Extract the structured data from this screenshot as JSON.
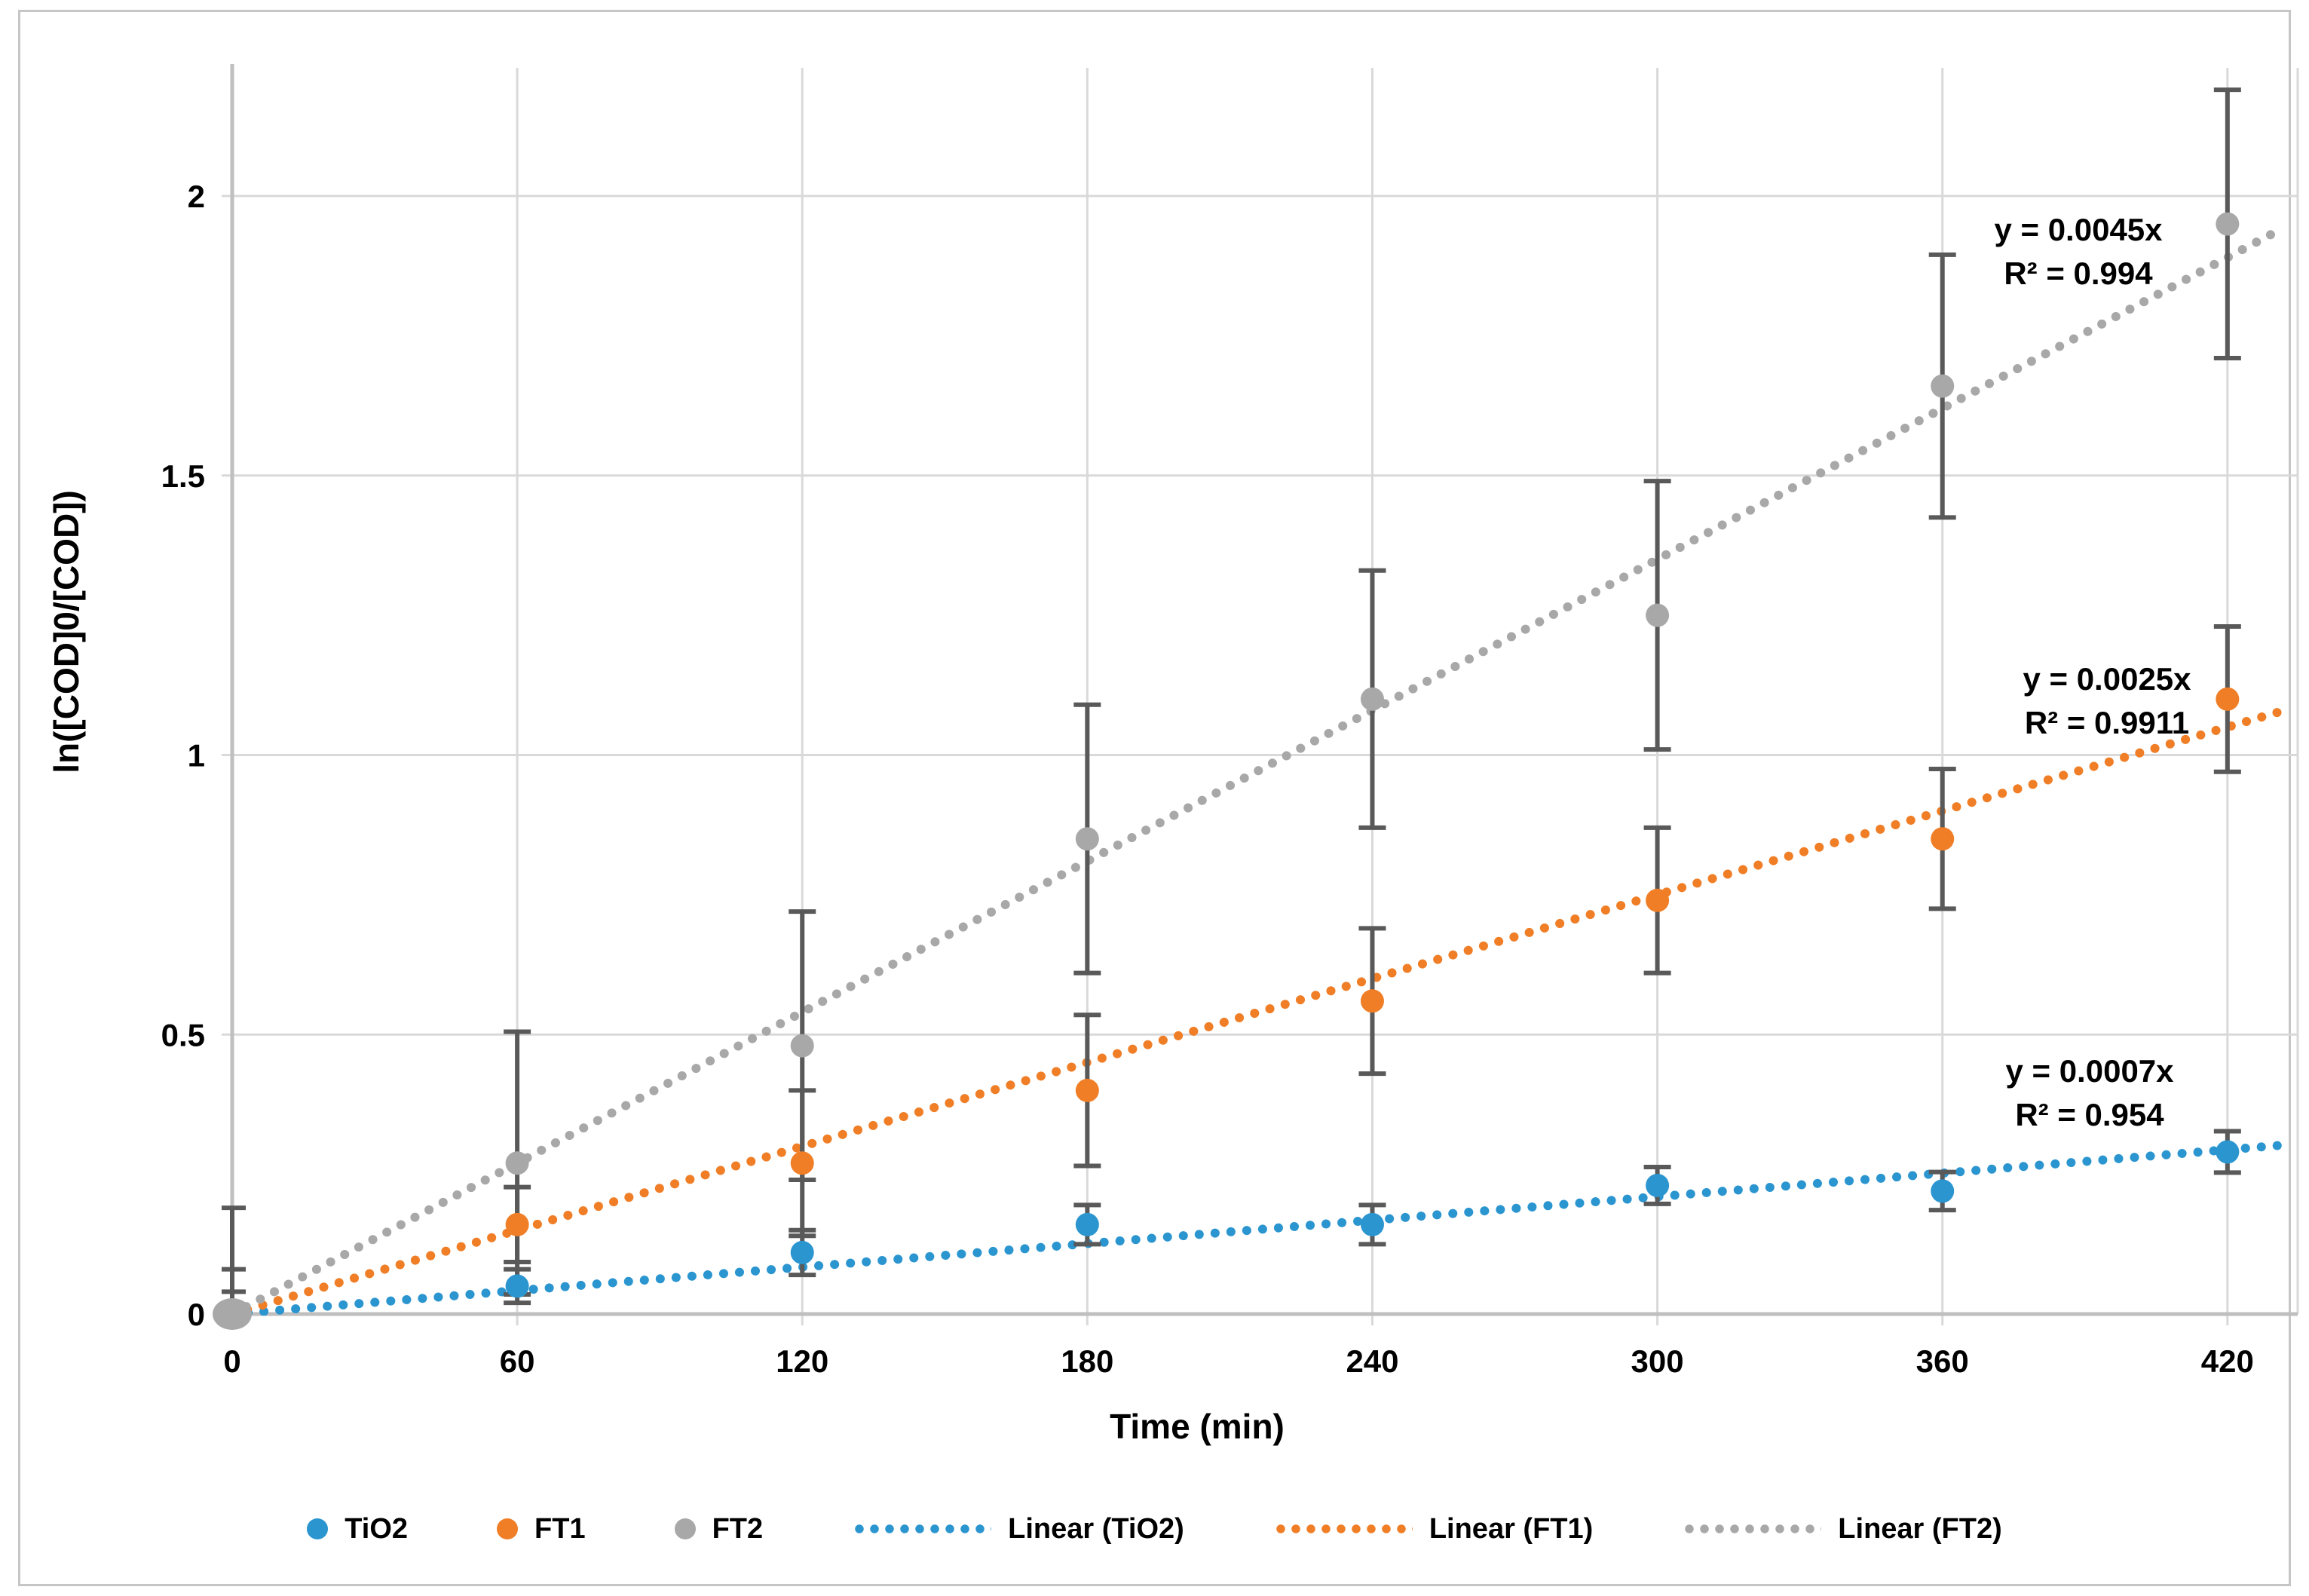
{
  "chart_data": {
    "type": "scatter",
    "title": "",
    "xlabel": "Time (min)",
    "ylabel": "ln([COD]0/[COD])",
    "x_tick_labels": [
      "0",
      "60",
      "120",
      "180",
      "240",
      "300",
      "360",
      "420"
    ],
    "y_tick_labels": [
      "0",
      "0.5",
      "1",
      "1.5",
      "2"
    ],
    "x_ticks": [
      0,
      60,
      120,
      180,
      240,
      300,
      360,
      420
    ],
    "y_ticks": [
      0,
      0.5,
      1,
      1.5,
      2
    ],
    "xlim": [
      0,
      434
    ],
    "ylim": [
      0,
      2.23
    ],
    "grid": true,
    "legend_position": "bottom",
    "x": [
      0,
      60,
      120,
      180,
      240,
      300,
      360,
      420
    ],
    "series": [
      {
        "name": "TiO2",
        "color": "#2B95D0",
        "values": [
          0,
          0.05,
          0.11,
          0.16,
          0.16,
          0.23,
          0.22,
          0.29
        ],
        "errors": [
          0.04,
          0.03,
          0.04,
          0.035,
          0.035,
          0.033,
          0.034,
          0.037
        ],
        "trend": {
          "slope": 0.0007,
          "label": "Linear (TiO2)",
          "equation": "y = 0.0007x",
          "r2": "R² = 0.954"
        }
      },
      {
        "name": "FT1",
        "color": "#F07E26",
        "values": [
          0,
          0.16,
          0.27,
          0.4,
          0.56,
          0.74,
          0.85,
          1.1
        ],
        "errors": [
          0.08,
          0.067,
          0.13,
          0.135,
          0.13,
          0.13,
          0.125,
          0.13
        ],
        "trend": {
          "slope": 0.0025,
          "label": "Linear (FT1)",
          "equation": "y = 0.0025x",
          "r2": "R² = 0.9911"
        }
      },
      {
        "name": "FT2",
        "color": "#A8A8A8",
        "values": [
          0,
          0.27,
          0.48,
          0.85,
          1.1,
          1.25,
          1.66,
          1.95
        ],
        "errors": [
          0.19,
          0.235,
          0.24,
          0.24,
          0.23,
          0.24,
          0.235,
          0.24
        ],
        "trend": {
          "slope": 0.0045,
          "label": "Linear (FT2)",
          "equation": "y = 0.0045x",
          "r2": "R² = 0.994"
        }
      }
    ],
    "colors": {
      "gridline": "#D9D9D9",
      "axis_line": "#BFBFBF",
      "error_bar": "#595959",
      "text": "#000000"
    }
  }
}
